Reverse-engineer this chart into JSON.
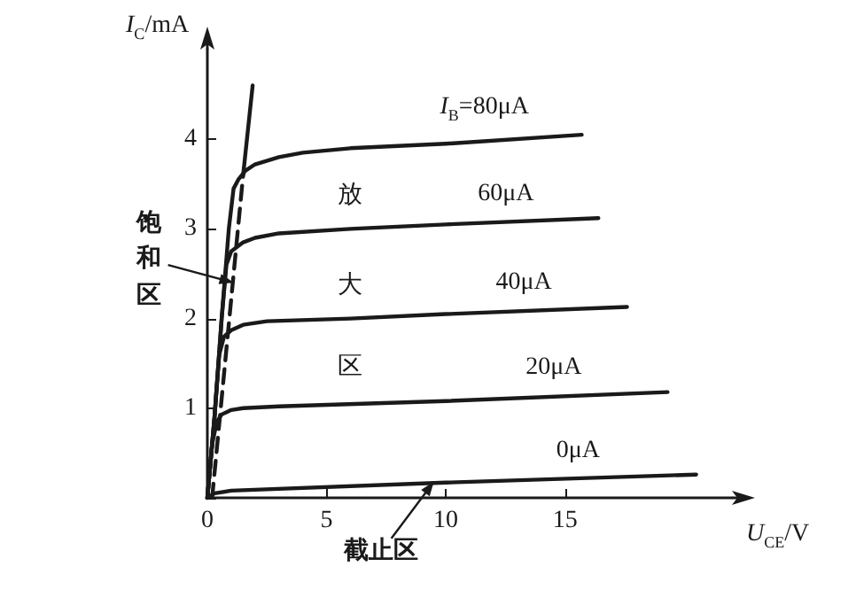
{
  "chart_data": {
    "type": "line",
    "xlabel": "U$_{CE}$/V",
    "ylabel": "I$_{C}$/mA",
    "xlim": [
      0,
      22
    ],
    "ylim": [
      0,
      5
    ],
    "xticks": [
      0,
      5,
      10,
      15
    ],
    "yticks": [
      {
        "value": 0,
        "label": null
      },
      1,
      2,
      3,
      4
    ],
    "grid": false,
    "marker": "none",
    "line_style": "solid",
    "annotations": [
      {
        "text": "饱和区",
        "x": 1.1,
        "y": 2.4
      },
      "放",
      "大",
      "区",
      {
        "text": "截止区",
        "x": 9.5,
        "y": 0.18
      }
    ],
    "series": [
      {
        "name": "I$_{B}$=80μA",
        "color": "#1a1a1a",
        "x": [
          0,
          0.3,
          0.6,
          0.9,
          1.1,
          1.3,
          1.6,
          2,
          3,
          4,
          6,
          10,
          15.7
        ],
        "values": [
          0,
          0.9,
          2,
          3,
          3.45,
          3.55,
          3.65,
          3.72,
          3.8,
          3.85,
          3.9,
          3.95,
          4.05
        ]
      },
      {
        "name": "60μA",
        "color": "#1a1a1a",
        "x": [
          0,
          0.3,
          0.6,
          0.8,
          1,
          1.5,
          2,
          3,
          6,
          10,
          16.4
        ],
        "values": [
          0,
          0.9,
          2,
          2.6,
          2.75,
          2.85,
          2.9,
          2.95,
          3.0,
          3.05,
          3.12
        ]
      },
      {
        "name": "40μA",
        "color": "#1a1a1a",
        "x": [
          0,
          0.3,
          0.5,
          0.7,
          1,
          1.5,
          2.5,
          6,
          10,
          17.6
        ],
        "values": [
          0,
          0.9,
          1.6,
          1.8,
          1.87,
          1.93,
          1.97,
          2.0,
          2.05,
          2.13
        ]
      },
      {
        "name": "20μA",
        "color": "#1a1a1a",
        "x": [
          0,
          0.2,
          0.4,
          0.6,
          1,
          1.5,
          3,
          10,
          19.3
        ],
        "values": [
          0,
          0.6,
          0.85,
          0.93,
          0.98,
          1.0,
          1.02,
          1.08,
          1.18
        ]
      },
      {
        "name": "0μA",
        "color": "#1a1a1a",
        "x": [
          0,
          0.3,
          1,
          10,
          20.5
        ],
        "values": [
          0,
          0.05,
          0.08,
          0.17,
          0.26
        ]
      },
      {
        "color": "#1a1a1a",
        "line_style": "dashed",
        "x": [
          0.2,
          1.5
        ],
        "values": [
          0,
          3.6
        ]
      },
      {
        "color": "#1a1a1a",
        "x": [
          1.5,
          1.9
        ],
        "values": [
          3.6,
          4.6
        ]
      }
    ]
  }
}
